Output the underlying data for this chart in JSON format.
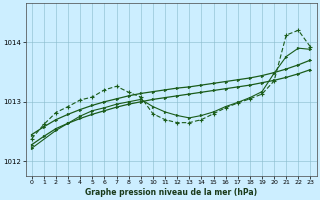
{
  "title": "Graphe pression niveau de la mer (hPa)",
  "bg_color": "#cceeff",
  "line_color": "#1a5c1a",
  "xlim": [
    -0.5,
    23.5
  ],
  "ylim": [
    1011.75,
    1014.65
  ],
  "yticks": [
    1012,
    1013,
    1014
  ],
  "xticks": [
    0,
    1,
    2,
    3,
    4,
    5,
    6,
    7,
    8,
    9,
    10,
    11,
    12,
    13,
    14,
    15,
    16,
    17,
    18,
    19,
    20,
    21,
    22,
    23
  ],
  "line1_x": [
    0,
    1,
    2,
    3,
    4,
    5,
    6,
    7,
    8,
    9,
    10,
    11,
    12,
    13,
    14,
    15,
    16,
    17,
    18,
    19,
    20,
    21,
    22,
    23
  ],
  "line1_y": [
    1012.28,
    1012.42,
    1012.55,
    1012.64,
    1012.72,
    1012.79,
    1012.85,
    1012.91,
    1012.96,
    1013.0,
    1013.04,
    1013.07,
    1013.1,
    1013.13,
    1013.16,
    1013.19,
    1013.22,
    1013.25,
    1013.28,
    1013.32,
    1013.36,
    1013.41,
    1013.47,
    1013.54
  ],
  "line2_x": [
    0,
    1,
    2,
    3,
    4,
    5,
    6,
    7,
    8,
    9,
    10,
    11,
    12,
    13,
    14,
    15,
    16,
    17,
    18,
    19,
    20,
    21,
    22,
    23
  ],
  "line2_y": [
    1012.45,
    1012.58,
    1012.7,
    1012.79,
    1012.87,
    1012.94,
    1013.0,
    1013.05,
    1013.1,
    1013.14,
    1013.17,
    1013.2,
    1013.23,
    1013.25,
    1013.28,
    1013.31,
    1013.34,
    1013.37,
    1013.4,
    1013.44,
    1013.49,
    1013.55,
    1013.62,
    1013.7
  ],
  "line3_x": [
    0,
    1,
    2,
    3,
    4,
    5,
    6,
    7,
    8,
    9,
    10,
    11,
    12,
    13,
    14,
    15,
    16,
    17,
    18,
    19,
    20,
    21,
    22,
    23
  ],
  "line3_y": [
    1012.38,
    1012.62,
    1012.82,
    1012.92,
    1013.03,
    1013.08,
    1013.2,
    1013.26,
    1013.16,
    1013.08,
    1012.8,
    1012.7,
    1012.65,
    1012.65,
    1012.7,
    1012.8,
    1012.9,
    1012.98,
    1013.05,
    1013.13,
    1013.35,
    1014.12,
    1014.2,
    1013.92
  ],
  "line4_x": [
    0,
    2,
    3,
    4,
    5,
    6,
    7,
    8,
    9,
    10,
    11,
    12,
    13,
    14,
    15,
    16,
    17,
    18,
    19,
    20,
    21,
    22,
    23
  ],
  "line4_y": [
    1012.22,
    1012.52,
    1012.64,
    1012.76,
    1012.85,
    1012.9,
    1012.96,
    1013.0,
    1013.04,
    1012.92,
    1012.83,
    1012.77,
    1012.73,
    1012.77,
    1012.83,
    1012.92,
    1012.99,
    1013.07,
    1013.17,
    1013.48,
    1013.76,
    1013.9,
    1013.88
  ]
}
